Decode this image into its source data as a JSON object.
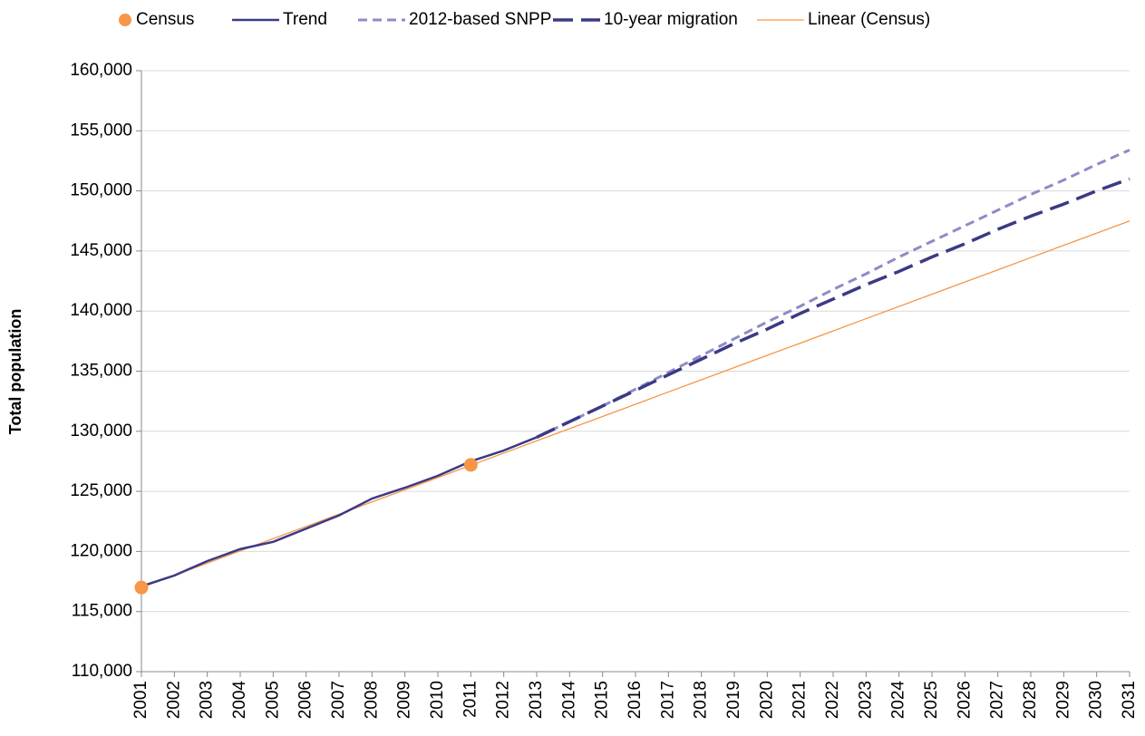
{
  "chart_data": {
    "type": "line",
    "y_label": "Total population",
    "categories": [
      "2001",
      "2002",
      "2003",
      "2004",
      "2005",
      "2006",
      "2007",
      "2008",
      "2009",
      "2010",
      "2011",
      "2012",
      "2013",
      "2014",
      "2015",
      "2016",
      "2017",
      "2018",
      "2019",
      "2020",
      "2021",
      "2022",
      "2023",
      "2024",
      "2025",
      "2026",
      "2027",
      "2028",
      "2029",
      "2030",
      "2031"
    ],
    "series": [
      {
        "name": "Census",
        "color": "#f79646",
        "style": "markers",
        "values": [
          117000,
          null,
          null,
          null,
          null,
          null,
          null,
          null,
          null,
          null,
          127200,
          null,
          null,
          null,
          null,
          null,
          null,
          null,
          null,
          null,
          null,
          null,
          null,
          null,
          null,
          null,
          null,
          null,
          null,
          null,
          null
        ]
      },
      {
        "name": "Trend",
        "color": "#3b3a85",
        "style": "solid",
        "values": [
          117100,
          118000,
          119200,
          120200,
          120800,
          121900,
          123000,
          124400,
          125300,
          126300,
          127500,
          128400,
          129500,
          null,
          null,
          null,
          null,
          null,
          null,
          null,
          null,
          null,
          null,
          null,
          null,
          null,
          null,
          null,
          null,
          null,
          null
        ]
      },
      {
        "name": "2012-based SNPP",
        "color": "#8c8cc8",
        "style": "dashed",
        "values": [
          null,
          null,
          null,
          null,
          null,
          null,
          null,
          null,
          null,
          null,
          null,
          null,
          129500,
          130800,
          132100,
          133500,
          134900,
          136300,
          137700,
          139100,
          140400,
          141800,
          143100,
          144500,
          145800,
          147100,
          148400,
          149700,
          150900,
          152200,
          153400
        ]
      },
      {
        "name": "10-year migration",
        "color": "#3b3a85",
        "style": "long-dashed",
        "values": [
          null,
          null,
          null,
          null,
          null,
          null,
          null,
          null,
          null,
          null,
          null,
          null,
          129500,
          130800,
          132100,
          133400,
          134700,
          136000,
          137300,
          138500,
          139800,
          141000,
          142200,
          143300,
          144500,
          145600,
          146800,
          147900,
          148900,
          150000,
          151000
        ]
      },
      {
        "name": "Linear (Census)",
        "color": "#f79646",
        "style": "thin",
        "values": [
          117000,
          118020,
          119030,
          120050,
          121070,
          122080,
          123100,
          124120,
          125130,
          126150,
          127170,
          128180,
          129200,
          130220,
          131230,
          132250,
          133270,
          134280,
          135300,
          136320,
          137330,
          138350,
          139370,
          140380,
          141400,
          142420,
          143430,
          144450,
          145470,
          146480,
          147500
        ]
      }
    ],
    "ylim": [
      110000,
      160000
    ],
    "yticks": [
      {
        "value": 110000,
        "label": "110,000"
      },
      {
        "value": 115000,
        "label": "115,000"
      },
      {
        "value": 120000,
        "label": "120,000"
      },
      {
        "value": 125000,
        "label": "125,000"
      },
      {
        "value": 130000,
        "label": "130,000"
      },
      {
        "value": 135000,
        "label": "135,000"
      },
      {
        "value": 140000,
        "label": "140,000"
      },
      {
        "value": 145000,
        "label": "145,000"
      },
      {
        "value": 150000,
        "label": "150,000"
      },
      {
        "value": 155000,
        "label": "155,000"
      },
      {
        "value": 160000,
        "label": "160,000"
      }
    ],
    "grid": true,
    "legend": "top"
  }
}
